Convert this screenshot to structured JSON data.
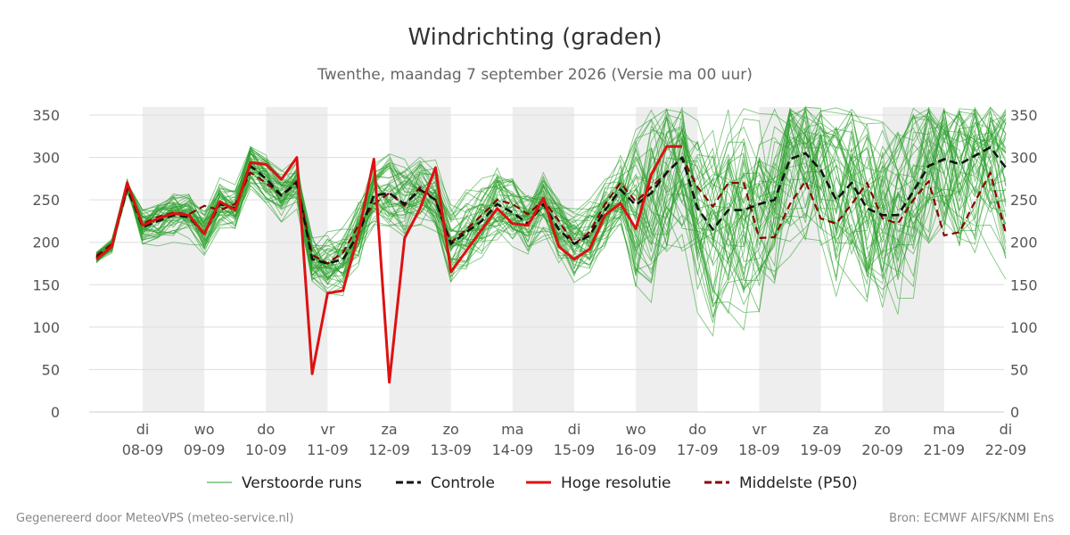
{
  "chart_data": {
    "type": "line",
    "title": "Windrichting (graden)",
    "subtitle": "Twenthe, maandag  7 september 2026 (Versie ma 00 uur)",
    "ylim": [
      0,
      360
    ],
    "yticks": [
      0,
      50,
      100,
      150,
      200,
      250,
      300,
      350
    ],
    "xlim": [
      -2.2,
      13.95
    ],
    "x_ticks": [
      {
        "x": 0,
        "day": "di",
        "date": "08-09"
      },
      {
        "x": 1,
        "day": "wo",
        "date": "09-09"
      },
      {
        "x": 2,
        "day": "do",
        "date": "10-09"
      },
      {
        "x": 3,
        "day": "vr",
        "date": "11-09"
      },
      {
        "x": 4,
        "day": "za",
        "date": "12-09"
      },
      {
        "x": 5,
        "day": "zo",
        "date": "13-09"
      },
      {
        "x": 6,
        "day": "ma",
        "date": "14-09"
      },
      {
        "x": 7,
        "day": "di",
        "date": "15-09"
      },
      {
        "x": 8,
        "day": "wo",
        "date": "16-09"
      },
      {
        "x": 9,
        "day": "do",
        "date": "17-09"
      },
      {
        "x": 10,
        "day": "vr",
        "date": "18-09"
      },
      {
        "x": 11,
        "day": "za",
        "date": "19-09"
      },
      {
        "x": 12,
        "day": "zo",
        "date": "20-09"
      },
      {
        "x": 13,
        "day": "ma",
        "date": "21-09"
      },
      {
        "x": 14,
        "day": "di",
        "date": "22-09"
      }
    ],
    "shaded_days": [
      [
        0,
        1
      ],
      [
        2,
        3
      ],
      [
        4,
        5
      ],
      [
        6,
        7
      ],
      [
        8,
        9
      ],
      [
        10,
        11
      ],
      [
        12,
        13
      ]
    ],
    "grid": true,
    "legend_position": "bottom",
    "legend": [
      {
        "label": "Verstoorde runs",
        "color": "#2ca02c",
        "style": "thin"
      },
      {
        "label": "Controle",
        "color": "#111111",
        "style": "dashed"
      },
      {
        "label": "Hoge resolutie",
        "color": "#dd1111",
        "style": "solid"
      },
      {
        "label": "Middelste (P50)",
        "color": "#8b0000",
        "style": "dashed"
      }
    ],
    "ensemble_member_count": 50,
    "series": [
      {
        "name": "Controle",
        "color": "#111111",
        "x": [
          -0.75,
          -0.5,
          -0.25,
          0,
          0.25,
          0.5,
          0.75,
          1,
          1.25,
          1.5,
          1.75,
          2,
          2.25,
          2.5,
          2.75,
          3,
          3.25,
          3.5,
          3.75,
          4,
          4.25,
          4.5,
          4.75,
          5,
          5.25,
          5.5,
          5.75,
          6,
          6.25,
          6.5,
          6.75,
          7,
          7.25,
          7.5,
          7.75,
          8,
          8.25,
          8.5,
          8.75,
          9,
          9.25,
          9.5,
          9.75,
          10,
          10.25,
          10.5,
          10.75,
          11,
          11.25,
          11.5,
          11.75,
          12,
          12.25,
          12.5,
          12.75,
          13,
          13.25,
          13.5,
          13.75,
          14
        ],
        "values": [
          182,
          195,
          265,
          218,
          225,
          232,
          230,
          210,
          245,
          240,
          290,
          275,
          255,
          270,
          180,
          175,
          180,
          210,
          255,
          258,
          245,
          262,
          250,
          198,
          212,
          225,
          245,
          235,
          222,
          245,
          215,
          198,
          208,
          238,
          262,
          244,
          258,
          282,
          300,
          240,
          215,
          238,
          238,
          245,
          250,
          298,
          305,
          285,
          250,
          270,
          240,
          232,
          232,
          260,
          290,
          298,
          292,
          302,
          312,
          288
        ]
      },
      {
        "name": "Hoge resolutie",
        "color": "#dd1111",
        "x": [
          -0.75,
          -0.5,
          -0.25,
          0,
          0.25,
          0.5,
          0.75,
          1,
          1.25,
          1.5,
          1.75,
          2,
          2.25,
          2.5,
          2.75,
          3,
          3.25,
          3.5,
          3.75,
          4,
          4.25,
          4.5,
          4.75,
          5,
          5.25,
          5.5,
          5.75,
          6,
          6.25,
          6.5,
          6.75,
          7,
          7.25,
          7.5,
          7.75,
          8,
          8.25,
          8.5,
          8.75
        ],
        "values": [
          180,
          195,
          270,
          220,
          228,
          234,
          232,
          210,
          248,
          238,
          294,
          292,
          274,
          300,
          45,
          140,
          143,
          210,
          298,
          35,
          205,
          240,
          288,
          165,
          190,
          215,
          240,
          222,
          220,
          252,
          195,
          180,
          192,
          232,
          246,
          216,
          280,
          313,
          313
        ]
      },
      {
        "name": "Middelste (P50)",
        "color": "#8b0000",
        "x": [
          -0.75,
          -0.5,
          -0.25,
          0,
          0.25,
          0.5,
          0.75,
          1,
          1.25,
          1.5,
          1.75,
          2,
          2.25,
          2.5,
          2.75,
          3,
          3.25,
          3.5,
          3.75,
          4,
          4.25,
          4.5,
          4.75,
          5,
          5.25,
          5.5,
          5.75,
          6,
          6.25,
          6.5,
          6.75,
          7,
          7.25,
          7.5,
          7.75,
          8,
          8.25,
          8.5,
          8.75,
          9,
          9.25,
          9.5,
          9.75,
          10,
          10.25,
          10.5,
          10.75,
          11,
          11.25,
          11.5,
          11.75,
          12,
          12.25,
          12.5,
          12.75,
          13,
          13.25,
          13.5,
          13.75,
          14
        ],
        "values": [
          184,
          198,
          262,
          222,
          230,
          235,
          233,
          243,
          238,
          245,
          282,
          270,
          255,
          272,
          185,
          175,
          188,
          220,
          245,
          258,
          243,
          265,
          250,
          200,
          215,
          232,
          250,
          245,
          233,
          250,
          225,
          198,
          212,
          245,
          270,
          248,
          265,
          282,
          300,
          265,
          242,
          270,
          270,
          205,
          206,
          245,
          272,
          228,
          222,
          245,
          270,
          228,
          222,
          250,
          272,
          208,
          212,
          248,
          282,
          210
        ]
      }
    ]
  },
  "footer": {
    "left": "Gegenereerd door MeteoVPS (meteo-service.nl)",
    "right": "Bron: ECMWF AIFS/KNMI Ens"
  }
}
